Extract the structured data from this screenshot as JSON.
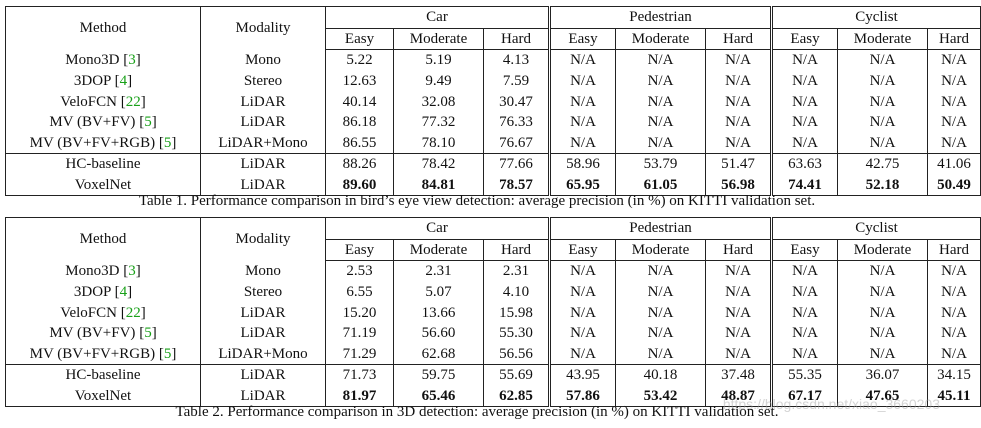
{
  "headers": {
    "method": "Method",
    "modality": "Modality",
    "groups": [
      "Car",
      "Pedestrian",
      "Cyclist"
    ],
    "difficulties": [
      "Easy",
      "Moderate",
      "Hard"
    ]
  },
  "tables": [
    {
      "caption": "Table 1. Performance comparison in bird’s eye view detection: average precision (in %) on KITTI validation set.",
      "rows": [
        {
          "method": "Mono3D",
          "ref": "3",
          "modality": "Mono",
          "values": [
            "5.22",
            "5.19",
            "4.13",
            "N/A",
            "N/A",
            "N/A",
            "N/A",
            "N/A",
            "N/A"
          ]
        },
        {
          "method": "3DOP",
          "ref": "4",
          "modality": "Stereo",
          "values": [
            "12.63",
            "9.49",
            "7.59",
            "N/A",
            "N/A",
            "N/A",
            "N/A",
            "N/A",
            "N/A"
          ]
        },
        {
          "method": "VeloFCN",
          "ref": "22",
          "modality": "LiDAR",
          "values": [
            "40.14",
            "32.08",
            "30.47",
            "N/A",
            "N/A",
            "N/A",
            "N/A",
            "N/A",
            "N/A"
          ]
        },
        {
          "method": "MV (BV+FV)",
          "ref": "5",
          "modality": "LiDAR",
          "values": [
            "86.18",
            "77.32",
            "76.33",
            "N/A",
            "N/A",
            "N/A",
            "N/A",
            "N/A",
            "N/A"
          ]
        },
        {
          "method": "MV (BV+FV+RGB)",
          "ref": "5",
          "modality": "LiDAR+Mono",
          "values": [
            "86.55",
            "78.10",
            "76.67",
            "N/A",
            "N/A",
            "N/A",
            "N/A",
            "N/A",
            "N/A"
          ]
        },
        {
          "method": "HC-baseline",
          "ref": "",
          "modality": "LiDAR",
          "values": [
            "88.26",
            "78.42",
            "77.66",
            "58.96",
            "53.79",
            "51.47",
            "63.63",
            "42.75",
            "41.06"
          ]
        },
        {
          "method": "VoxelNet",
          "ref": "",
          "modality": "LiDAR",
          "values": [
            "89.60",
            "84.81",
            "78.57",
            "65.95",
            "61.05",
            "56.98",
            "74.41",
            "52.18",
            "50.49"
          ],
          "bold": true
        }
      ]
    },
    {
      "caption": "Table 2. Performance comparison in 3D detection: average precision (in %) on KITTI validation set.",
      "rows": [
        {
          "method": "Mono3D",
          "ref": "3",
          "modality": "Mono",
          "values": [
            "2.53",
            "2.31",
            "2.31",
            "N/A",
            "N/A",
            "N/A",
            "N/A",
            "N/A",
            "N/A"
          ]
        },
        {
          "method": "3DOP",
          "ref": "4",
          "modality": "Stereo",
          "values": [
            "6.55",
            "5.07",
            "4.10",
            "N/A",
            "N/A",
            "N/A",
            "N/A",
            "N/A",
            "N/A"
          ]
        },
        {
          "method": "VeloFCN",
          "ref": "22",
          "modality": "LiDAR",
          "values": [
            "15.20",
            "13.66",
            "15.98",
            "N/A",
            "N/A",
            "N/A",
            "N/A",
            "N/A",
            "N/A"
          ]
        },
        {
          "method": "MV (BV+FV)",
          "ref": "5",
          "modality": "LiDAR",
          "values": [
            "71.19",
            "56.60",
            "55.30",
            "N/A",
            "N/A",
            "N/A",
            "N/A",
            "N/A",
            "N/A"
          ]
        },
        {
          "method": "MV (BV+FV+RGB)",
          "ref": "5",
          "modality": "LiDAR+Mono",
          "values": [
            "71.29",
            "62.68",
            "56.56",
            "N/A",
            "N/A",
            "N/A",
            "N/A",
            "N/A",
            "N/A"
          ]
        },
        {
          "method": "HC-baseline",
          "ref": "",
          "modality": "LiDAR",
          "values": [
            "71.73",
            "59.75",
            "55.69",
            "43.95",
            "40.18",
            "37.48",
            "55.35",
            "36.07",
            "34.15"
          ]
        },
        {
          "method": "VoxelNet",
          "ref": "",
          "modality": "LiDAR",
          "values": [
            "81.97",
            "65.46",
            "62.85",
            "57.86",
            "53.42",
            "48.87",
            "67.17",
            "47.65",
            "45.11"
          ],
          "bold": true
        }
      ]
    }
  ],
  "watermark": "https://blog.csdn.net/xiao_3660203",
  "colors": {
    "reference_link": "#18a018",
    "text": "#111111"
  }
}
